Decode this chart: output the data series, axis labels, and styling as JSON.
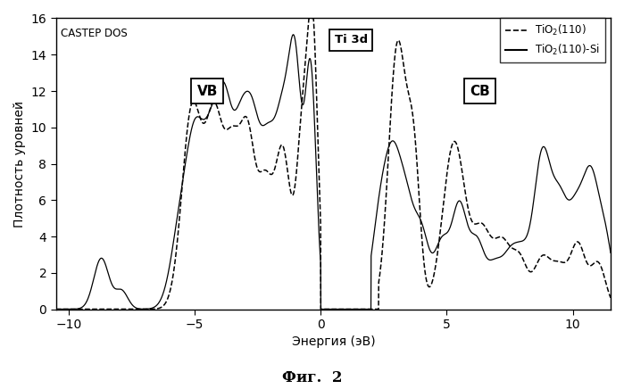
{
  "title": "CASTEP DOS",
  "xlabel": "Энергия (эВ)",
  "ylabel": "Плотность уровней",
  "caption": "Фиг.  2",
  "xlim": [
    -10.5,
    11.5
  ],
  "ylim": [
    0,
    16
  ],
  "yticks": [
    0,
    2,
    4,
    6,
    8,
    10,
    12,
    14,
    16
  ],
  "xticks": [
    -10,
    -5,
    0,
    5,
    10
  ],
  "legend_dashed": "TiO$_2$(110)",
  "legend_solid": "TiO$_2$(110)-Si",
  "annotation_VB": "VB",
  "annotation_Ti3d": "Ti 3d",
  "annotation_CB": "CB",
  "VB_x": -4.5,
  "VB_y": 12.0,
  "Ti3d_x": 1.2,
  "Ti3d_y": 14.8,
  "CB_x": 6.3,
  "CB_y": 12.0
}
